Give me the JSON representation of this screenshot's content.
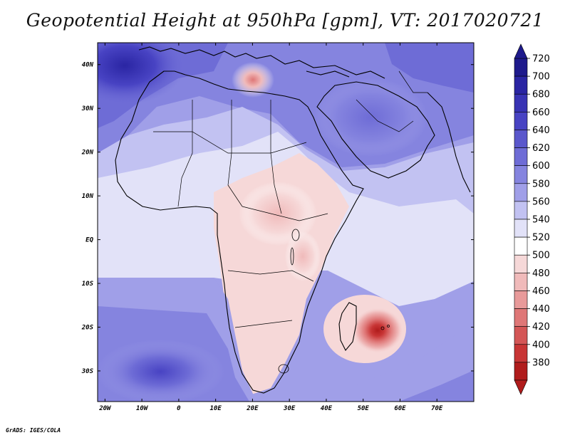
{
  "title": "Geopotential Height at 950hPa [gpm], VT: 2017020721",
  "footer": "GrADS: IGES/COLA",
  "x_axis_labels": [
    "20W",
    "10W",
    "0",
    "10E",
    "20E",
    "30E",
    "40E",
    "50E",
    "60E",
    "70E"
  ],
  "y_axis_labels": [
    "40N",
    "30N",
    "20N",
    "10N",
    "EQ",
    "10S",
    "20S",
    "30S"
  ],
  "colorbar": {
    "levels": [
      720,
      700,
      680,
      660,
      640,
      620,
      600,
      580,
      560,
      540,
      520,
      500,
      480,
      460,
      440,
      420,
      400,
      380
    ],
    "labels": [
      "720",
      "700",
      "680",
      "660",
      "640",
      "620",
      "600",
      "580",
      "560",
      "540",
      "520",
      "500",
      "480",
      "460",
      "440",
      "420",
      "400",
      "380"
    ],
    "colors": [
      "#1e1a8c",
      "#2a25a3",
      "#3833b4",
      "#4843c3",
      "#5a57cc",
      "#6e6cd6",
      "#8584df",
      "#a09fe8",
      "#c2c2f2",
      "#e2e2f8",
      "#ffffff",
      "#f6d8d8",
      "#f0baba",
      "#e89a9a",
      "#df7777",
      "#d45656",
      "#c83535",
      "#b01c1c"
    ]
  },
  "chart_data": {
    "type": "heatmap",
    "title": "Geopotential Height at 950hPa [gpm], VT: 2017020721",
    "variable": "Geopotential Height at 950hPa",
    "units": "gpm",
    "valid_time": "2017020721",
    "lon_range": [
      -22,
      80
    ],
    "lat_range": [
      -37,
      45
    ],
    "contour_levels": [
      380,
      400,
      420,
      440,
      460,
      480,
      500,
      520,
      540,
      560,
      580,
      600,
      620,
      640,
      660,
      680,
      700,
      720
    ]
  }
}
